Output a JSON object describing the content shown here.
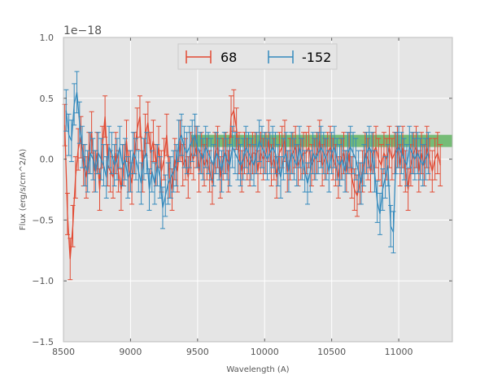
{
  "chart_data": {
    "type": "line",
    "title": "",
    "xlabel": "Wavelength (A)",
    "ylabel": "Flux (erg/s/cm^2/A)",
    "y_offset_label": "1e−18",
    "xlim": [
      8500,
      11400
    ],
    "ylim": [
      -1.5,
      1.0
    ],
    "x_ticks": [
      8500,
      9000,
      9500,
      10000,
      10500,
      11000
    ],
    "x_tick_labels": [
      "8500",
      "9000",
      "9500",
      "10000",
      "10500",
      "11000"
    ],
    "y_ticks": [
      1.0,
      0.5,
      0.0,
      -0.5,
      -1.0,
      -1.5
    ],
    "y_tick_labels": [
      "1.0",
      "0.5",
      "0.0",
      "−0.5",
      "−1.0",
      "−1.5"
    ],
    "grid": true,
    "legend_position": "top-center",
    "highlight_band": {
      "x_range": [
        9450,
        11400
      ],
      "y_range": [
        0.1,
        0.2
      ],
      "color": "#2ca02c"
    },
    "series": [
      {
        "name": "68",
        "color": "#e24a33",
        "x_start": 8510,
        "x_step": 20,
        "y": [
          0.28,
          -0.45,
          -0.82,
          -0.55,
          -0.15,
          0.08,
          0.18,
          -0.05,
          -0.15,
          0.05,
          0.22,
          -0.1,
          0.05,
          -0.25,
          0.1,
          0.35,
          -0.05,
          -0.1,
          -0.15,
          0.05,
          -0.1,
          -0.25,
          -0.05,
          0.15,
          -0.1,
          -0.2,
          0.05,
          0.25,
          0.35,
          -0.1,
          0.2,
          0.3,
          0.05,
          0.15,
          -0.05,
          0.1,
          -0.1,
          0.0,
          0.2,
          -0.15,
          -0.25,
          0.0,
          -0.1,
          0.15,
          -0.05,
          0.0,
          -0.15,
          0.05,
          0.0,
          0.1,
          -0.1,
          0.05,
          -0.05,
          0.0,
          -0.1,
          -0.2,
          0.05,
          0.1,
          -0.15,
          0.0,
          0.05,
          -0.1,
          0.35,
          0.4,
          0.25,
          0.05,
          -0.1,
          0.05,
          0.0,
          -0.05,
          0.05,
          0.05,
          -0.1,
          0.05,
          0.0,
          0.05,
          0.15,
          -0.05,
          0.0,
          -0.15,
          0.05,
          0.1,
          0.15,
          -0.1,
          0.0,
          0.05,
          0.1,
          -0.05,
          0.0,
          0.05,
          0.05,
          0.1,
          -0.05,
          0.0,
          0.05,
          0.15,
          -0.05,
          0.0,
          0.05,
          0.1,
          0.0,
          -0.05,
          -0.15,
          0.0,
          0.05,
          -0.1,
          0.05,
          -0.15,
          -0.25,
          -0.3,
          -0.2,
          -0.1,
          0.05,
          0.0,
          -0.1,
          0.05,
          0.1,
          0.0,
          -0.05,
          0.05,
          0.0,
          0.1,
          0.0,
          0.05,
          0.1,
          -0.05,
          0.1,
          -0.1,
          -0.25,
          -0.05,
          0.05,
          0.1,
          -0.1,
          0.05,
          -0.05,
          0.1,
          0.0,
          -0.1,
          0.0,
          0.05,
          -0.05
        ],
        "err": 0.17
      },
      {
        "name": "-152",
        "color": "#348abd",
        "x_start": 8520,
        "x_step": 20,
        "y": [
          0.4,
          0.2,
          0.15,
          0.45,
          0.55,
          0.3,
          0.1,
          -0.05,
          -0.1,
          0.05,
          0.0,
          -0.1,
          0.05,
          0.0,
          -0.05,
          -0.15,
          0.1,
          0.05,
          -0.05,
          0.0,
          0.1,
          -0.05,
          0.0,
          -0.15,
          -0.1,
          0.05,
          0.0,
          -0.1,
          -0.2,
          0.0,
          0.05,
          -0.25,
          -0.1,
          -0.2,
          -0.05,
          -0.15,
          -0.4,
          -0.3,
          -0.2,
          -0.15,
          -0.1,
          -0.05,
          0.15,
          0.2,
          0.1,
          0.05,
          0.1,
          0.15,
          0.2,
          0.1,
          0.05,
          0.0,
          0.1,
          0.05,
          0.0,
          -0.05,
          0.05,
          0.0,
          -0.1,
          0.05,
          0.0,
          -0.05,
          0.1,
          0.05,
          0.0,
          -0.05,
          0.0,
          0.1,
          0.05,
          0.0,
          -0.05,
          0.05,
          0.15,
          0.1,
          0.05,
          0.0,
          0.05,
          0.1,
          0.05,
          -0.05,
          -0.15,
          0.0,
          0.05,
          -0.1,
          0.05,
          0.0,
          -0.05,
          0.1,
          0.0,
          -0.1,
          -0.2,
          -0.1,
          0.05,
          0.0,
          0.05,
          0.1,
          0.05,
          0.0,
          -0.1,
          0.05,
          0.1,
          0.0,
          -0.05,
          0.0,
          -0.1,
          0.05,
          0.1,
          0.05,
          0.0,
          -0.1,
          -0.2,
          -0.05,
          0.05,
          0.1,
          0.05,
          -0.1,
          -0.35,
          -0.45,
          -0.25,
          -0.15,
          -0.05,
          -0.55,
          -0.6,
          0.05,
          0.1,
          0.05,
          0.0,
          -0.05,
          0.1,
          0.05,
          0.0,
          0.05,
          0.0,
          -0.05,
          0.0,
          0.05
        ],
        "err": 0.17
      }
    ]
  }
}
